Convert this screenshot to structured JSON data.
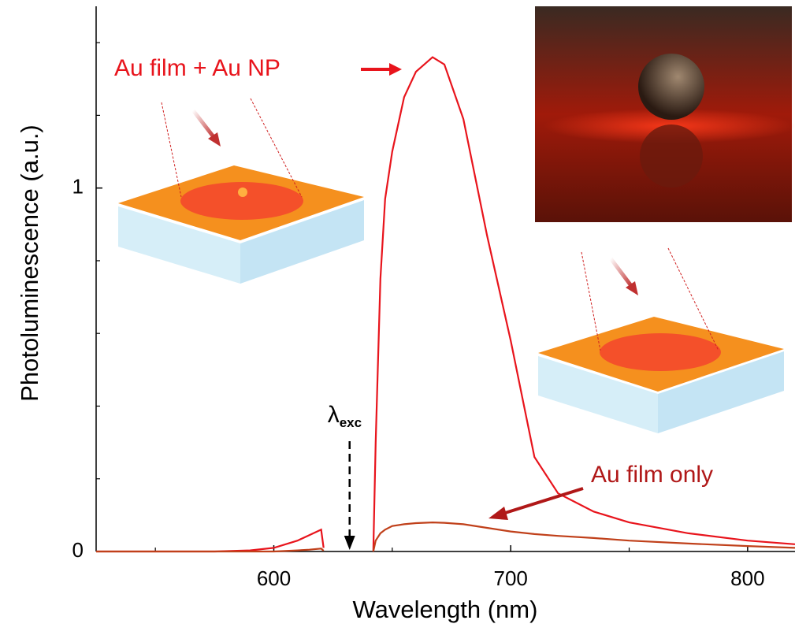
{
  "chart_data": {
    "type": "line",
    "x_label": "Wavelength (nm)",
    "y_label": "Photoluminescence (a.u.)",
    "x": [
      525,
      550,
      575,
      590,
      600,
      610,
      615,
      620,
      621,
      630,
      641,
      642,
      643,
      645,
      647,
      650,
      655,
      660,
      667,
      672,
      680,
      690,
      700,
      710,
      720,
      735,
      750,
      775,
      800,
      820
    ],
    "series": [
      {
        "name": "Au film + Au NP",
        "color": "#e8141c",
        "values": [
          0,
          0,
          0,
          0.003,
          0.01,
          0.03,
          0.045,
          0.06,
          0.01,
          null,
          null,
          0,
          0.3,
          0.75,
          0.97,
          1.1,
          1.25,
          1.32,
          1.36,
          1.34,
          1.19,
          0.87,
          0.58,
          0.26,
          0.16,
          0.11,
          0.08,
          0.05,
          0.03,
          0.02
        ]
      },
      {
        "name": "Au film only",
        "color": "#c0401a",
        "values": [
          0,
          0,
          0,
          0,
          0,
          0.003,
          0.005,
          0.008,
          0.002,
          null,
          null,
          0,
          0.03,
          0.05,
          0.06,
          0.07,
          0.075,
          0.078,
          0.08,
          0.079,
          0.075,
          0.065,
          0.055,
          0.048,
          0.043,
          0.037,
          0.03,
          0.022,
          0.015,
          0.01
        ]
      }
    ],
    "xlim": [
      525,
      820
    ],
    "ylim": [
      0,
      1.5
    ],
    "xticks": [
      600,
      700,
      800
    ],
    "yticks": [
      0,
      1
    ],
    "x_minor_ticks": [
      550,
      650,
      750
    ],
    "y_minor_ticks": [
      0.2,
      0.4,
      0.6,
      0.8,
      1.2,
      1.4
    ],
    "excitation": {
      "symbol": "λ",
      "subscript": "exc",
      "wavelength": 632
    }
  }
}
